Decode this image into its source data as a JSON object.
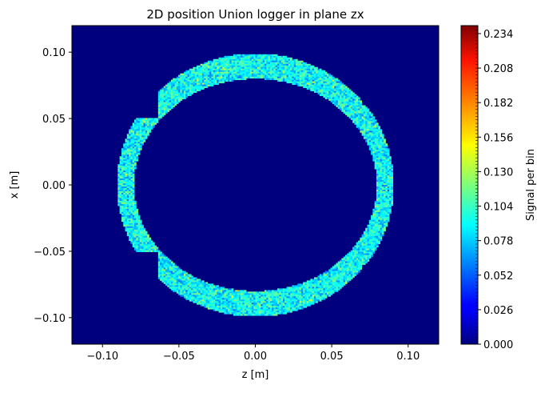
{
  "chart_data": {
    "type": "heatmap",
    "title": "2D position Union logger in plane zx",
    "xlabel": "z [m]",
    "ylabel": "x [m]",
    "colorbar_label": "Signal per bin",
    "xlim": [
      -0.12,
      0.12
    ],
    "ylim": [
      -0.12,
      0.12
    ],
    "x_ticks": [
      -0.1,
      -0.05,
      0.0,
      0.05,
      0.1
    ],
    "x_tick_labels": [
      "−0.10",
      "−0.05",
      "0.00",
      "0.05",
      "0.10"
    ],
    "y_ticks": [
      0.1,
      0.05,
      0.0,
      -0.05,
      -0.1
    ],
    "y_tick_labels": [
      "0.10",
      "0.05",
      "0.00",
      "−0.05",
      "−0.10"
    ],
    "colorbar_range": [
      0.0,
      0.24
    ],
    "colorbar_ticks": [
      0.234,
      0.208,
      0.182,
      0.156,
      0.13,
      0.104,
      0.078,
      0.052,
      0.026,
      0.0
    ],
    "colorbar_tick_labels": [
      "0.234",
      "0.208",
      "0.182",
      "0.156",
      "0.130",
      "0.104",
      "0.078",
      "0.052",
      "0.026",
      "0.000"
    ],
    "colormap": "jet",
    "background_color": "#00007f",
    "signal_region": {
      "shape": "elliptical ring with notches",
      "center": [
        0.0,
        0.0
      ],
      "outer_radius_z": 0.0905,
      "outer_radius_x": 0.099,
      "inner_radius_z": 0.0795,
      "inner_radius_x": 0.08,
      "typical_signal_range": [
        0.052,
        0.13
      ],
      "notches": [
        {
          "side": "left",
          "x_range": [
            0.05,
            0.12
          ],
          "z_max": -0.063
        },
        {
          "side": "left",
          "x_range": [
            -0.12,
            -0.05
          ],
          "z_max": -0.063
        },
        {
          "side": "right",
          "x_range": [
            0.06,
            0.12
          ],
          "z_min": 0.07
        },
        {
          "side": "right",
          "x_range": [
            -0.12,
            -0.06
          ],
          "z_min": 0.07
        }
      ]
    }
  }
}
